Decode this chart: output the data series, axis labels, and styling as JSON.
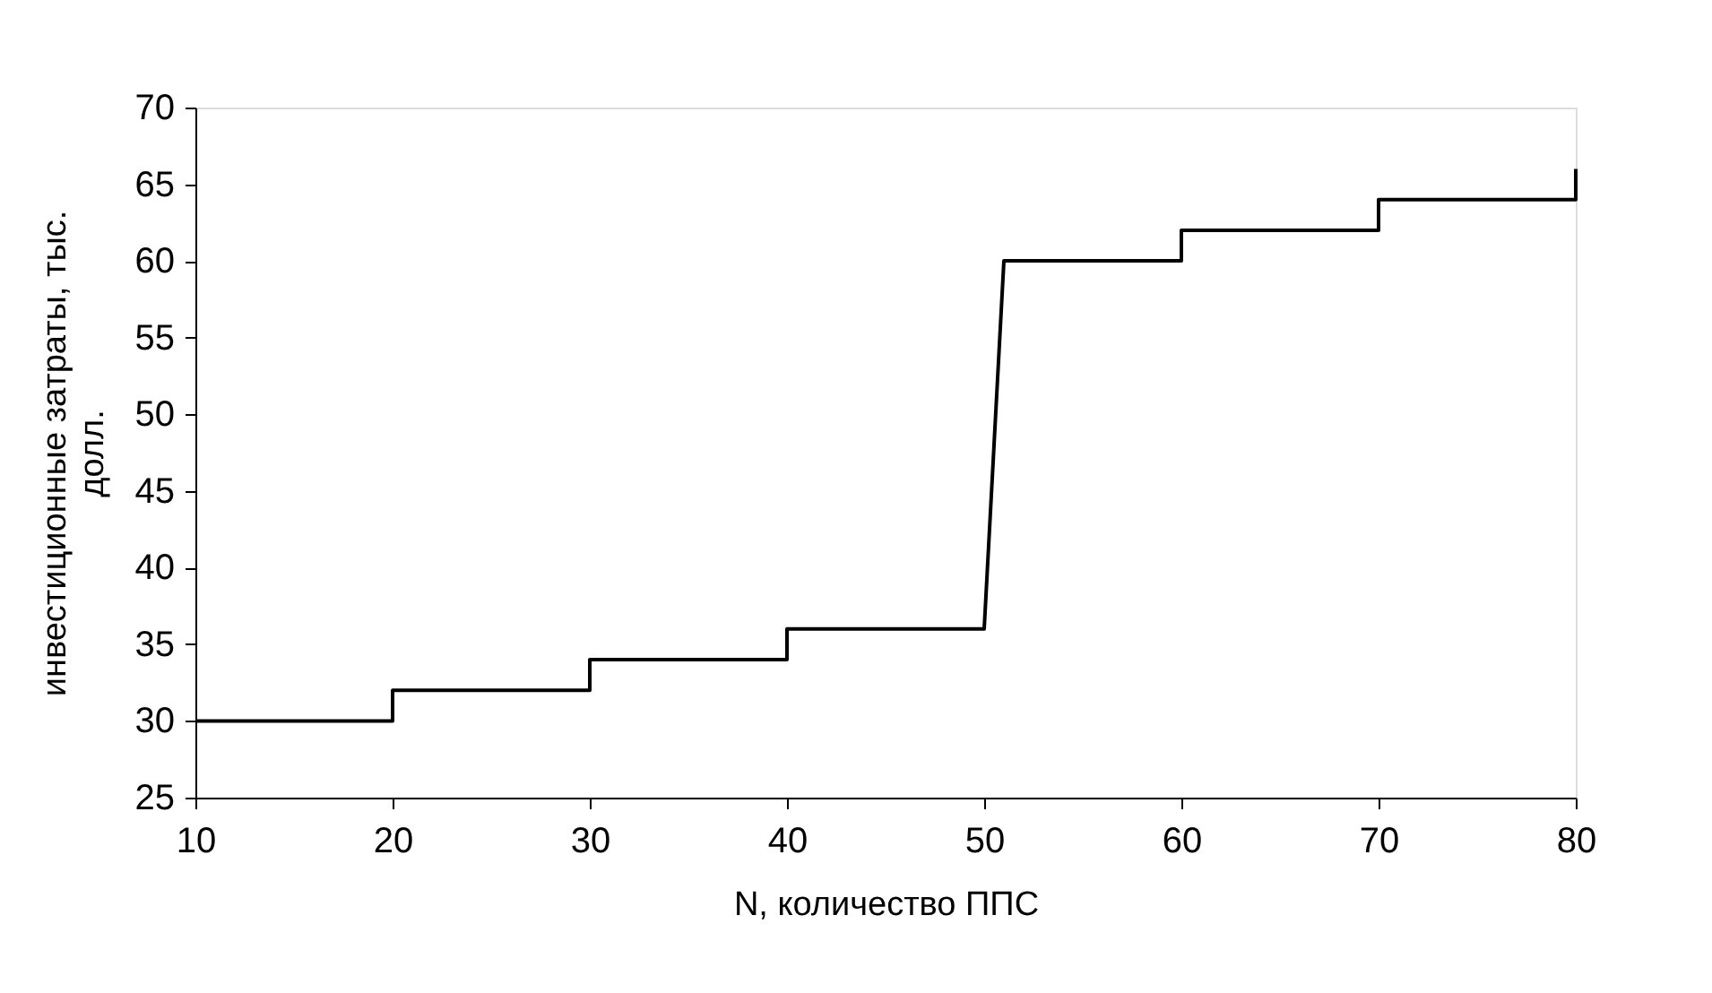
{
  "chart_data": {
    "type": "line",
    "xlabel": "N, количество ППС",
    "ylabel": "инвестиционные затраты, тыс. долл.",
    "series": [
      {
        "color": "#000000",
        "x": [
          10,
          20,
          20,
          30,
          30,
          40,
          40,
          50,
          51,
          60,
          60,
          70,
          70,
          80,
          80
        ],
        "values": [
          30,
          30,
          32,
          32,
          34,
          34,
          36,
          36,
          60,
          60,
          62,
          62,
          64,
          64,
          66
        ]
      }
    ],
    "xlim": [
      10,
      80
    ],
    "xticks": [
      10,
      20,
      30,
      40,
      50,
      60,
      70,
      80
    ],
    "ylim": [
      25,
      70
    ],
    "yticks": [
      25,
      30,
      35,
      40,
      45,
      50,
      55,
      60,
      65,
      70
    ],
    "grid": false,
    "legend": false,
    "marker": "none",
    "line_style": "solid"
  }
}
